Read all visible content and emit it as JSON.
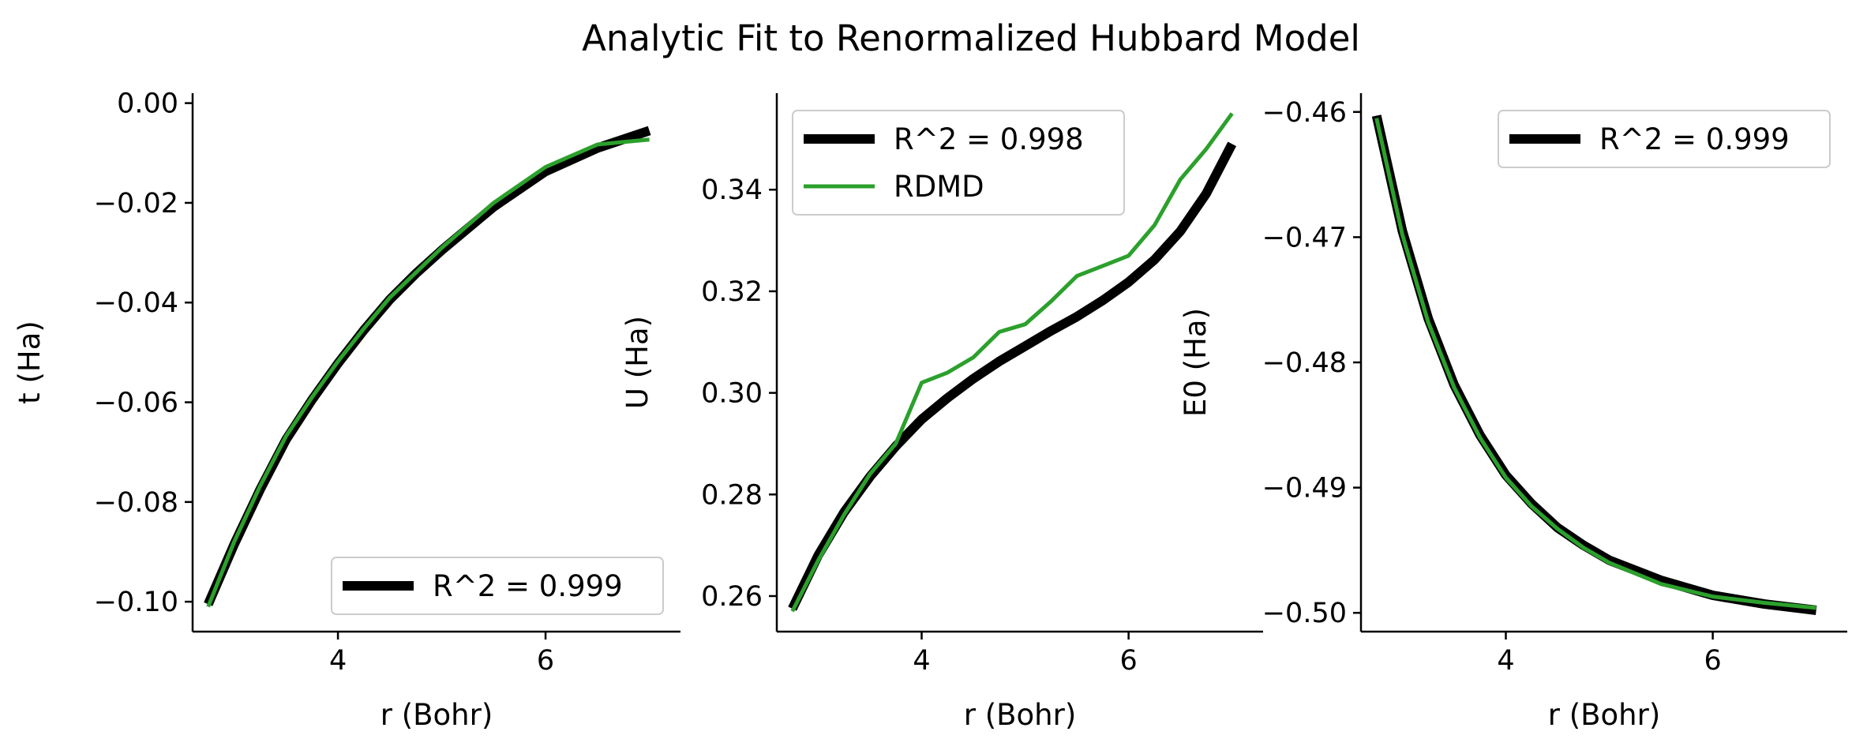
{
  "figure": {
    "title": "Analytic Fit to Renormalized Hubbard Model"
  },
  "colors": {
    "fit": "#000000",
    "rdmd": "#2ca02c"
  },
  "chart_data": [
    {
      "type": "line",
      "xlabel": "r (Bohr)",
      "ylabel": "t (Ha)",
      "xlim": [
        2.6,
        7.3
      ],
      "ylim": [
        -0.106,
        0.002
      ],
      "xticks": [
        4,
        6
      ],
      "xtick_labels": [
        "4",
        "6"
      ],
      "yticks": [
        -0.1,
        -0.08,
        -0.06,
        -0.04,
        -0.02,
        0.0
      ],
      "ytick_labels": [
        "−0.10",
        "−0.08",
        "−0.06",
        "−0.04",
        "−0.02",
        "0.00"
      ],
      "legend_position": "lower-right",
      "series": [
        {
          "name": "R^2 = 0.999",
          "role": "fit",
          "x": [
            2.75,
            3.0,
            3.25,
            3.5,
            3.75,
            4.0,
            4.25,
            4.5,
            4.75,
            5.0,
            5.5,
            6.0,
            6.5,
            7.0
          ],
          "y": [
            -0.1005,
            -0.0885,
            -0.0775,
            -0.0675,
            -0.0595,
            -0.0522,
            -0.0455,
            -0.0394,
            -0.0342,
            -0.0295,
            -0.0208,
            -0.0137,
            -0.009,
            -0.0055
          ]
        },
        {
          "role": "rdmd",
          "x": [
            2.75,
            3.0,
            3.25,
            3.5,
            3.75,
            4.0,
            4.25,
            4.5,
            4.75,
            5.0,
            5.5,
            6.0,
            6.5,
            7.0
          ],
          "y": [
            -0.101,
            -0.088,
            -0.0768,
            -0.0668,
            -0.059,
            -0.0518,
            -0.0452,
            -0.039,
            -0.034,
            -0.029,
            -0.02,
            -0.0128,
            -0.0083,
            -0.0073
          ]
        }
      ]
    },
    {
      "type": "line",
      "xlabel": "r (Bohr)",
      "ylabel": "U (Ha)",
      "xlim": [
        2.6,
        7.3
      ],
      "ylim": [
        0.253,
        0.359
      ],
      "xticks": [
        4,
        6
      ],
      "xtick_labels": [
        "4",
        "6"
      ],
      "yticks": [
        0.26,
        0.28,
        0.3,
        0.32,
        0.34
      ],
      "ytick_labels": [
        "0.26",
        "0.28",
        "0.30",
        "0.32",
        "0.34"
      ],
      "legend_position": "upper-left",
      "series": [
        {
          "name": "R^2 = 0.998",
          "role": "fit",
          "x": [
            2.75,
            3.0,
            3.25,
            3.5,
            3.75,
            4.0,
            4.25,
            4.5,
            4.75,
            5.0,
            5.25,
            5.5,
            5.75,
            6.0,
            6.25,
            6.5,
            6.75,
            7.0
          ],
          "y": [
            0.2575,
            0.268,
            0.2765,
            0.2835,
            0.2895,
            0.2948,
            0.299,
            0.3028,
            0.3062,
            0.3092,
            0.3122,
            0.315,
            0.3182,
            0.3218,
            0.3262,
            0.3318,
            0.3392,
            0.349
          ]
        },
        {
          "name": "RDMD",
          "role": "rdmd",
          "x": [
            2.75,
            3.0,
            3.25,
            3.5,
            3.75,
            4.0,
            4.25,
            4.5,
            4.75,
            5.0,
            5.25,
            5.5,
            5.75,
            6.0,
            6.25,
            6.5,
            6.75,
            7.0
          ],
          "y": [
            0.257,
            0.267,
            0.276,
            0.284,
            0.29,
            0.302,
            0.304,
            0.307,
            0.312,
            0.3135,
            0.318,
            0.323,
            0.325,
            0.327,
            0.333,
            0.342,
            0.348,
            0.355
          ]
        }
      ]
    },
    {
      "type": "line",
      "xlabel": "r (Bohr)",
      "ylabel": "E0 (Ha)",
      "xlim": [
        2.6,
        7.3
      ],
      "ylim": [
        -0.5015,
        -0.4585
      ],
      "xticks": [
        4,
        6
      ],
      "xtick_labels": [
        "4",
        "6"
      ],
      "yticks": [
        -0.5,
        -0.49,
        -0.48,
        -0.47,
        -0.46
      ],
      "ytick_labels": [
        "−0.50",
        "−0.49",
        "−0.48",
        "−0.47",
        "−0.46"
      ],
      "legend_position": "upper-right",
      "series": [
        {
          "name": "R^2 = 0.999",
          "role": "fit",
          "x": [
            2.75,
            3.0,
            3.25,
            3.5,
            3.75,
            4.0,
            4.25,
            4.5,
            4.75,
            5.0,
            5.5,
            6.0,
            6.5,
            7.0
          ],
          "y": [
            -0.4603,
            -0.4695,
            -0.4765,
            -0.4818,
            -0.4858,
            -0.489,
            -0.4913,
            -0.4932,
            -0.4946,
            -0.4958,
            -0.4974,
            -0.4986,
            -0.4993,
            -0.4998
          ]
        },
        {
          "role": "rdmd",
          "x": [
            2.75,
            3.0,
            3.25,
            3.5,
            3.75,
            4.0,
            4.25,
            4.5,
            4.75,
            5.0,
            5.5,
            6.0,
            6.5,
            7.0
          ],
          "y": [
            -0.4605,
            -0.4698,
            -0.4768,
            -0.482,
            -0.486,
            -0.4892,
            -0.4915,
            -0.4933,
            -0.4948,
            -0.496,
            -0.4977,
            -0.4987,
            -0.4992,
            -0.4996
          ]
        }
      ]
    }
  ]
}
